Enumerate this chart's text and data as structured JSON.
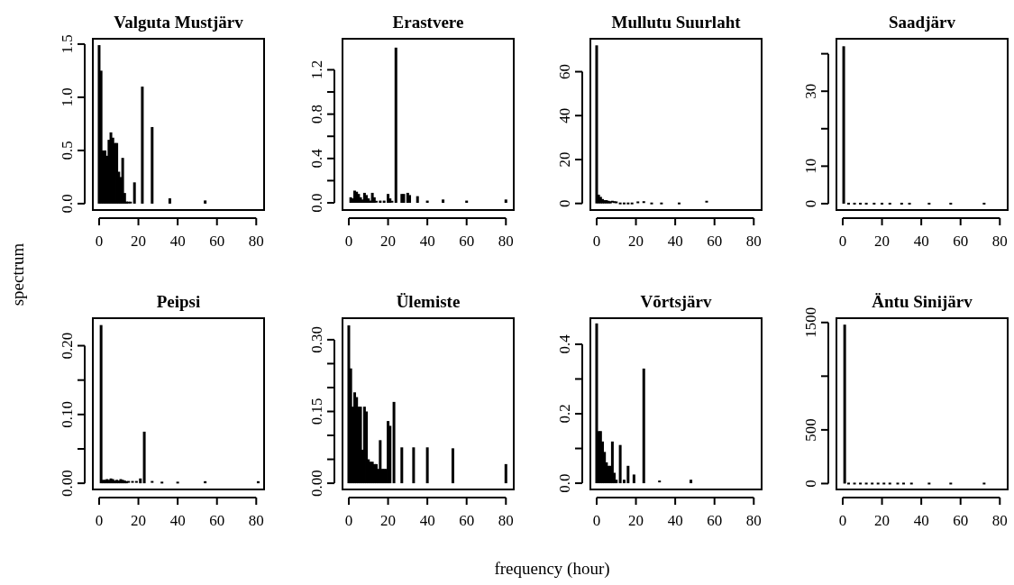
{
  "chart_data": [
    {
      "type": "bar",
      "title": "Valguta Mustjärv",
      "ylabel": "spectrum",
      "color": "#000000",
      "x": [
        0,
        1,
        2,
        3,
        4,
        5,
        6,
        7,
        8,
        9,
        10,
        11,
        12,
        13,
        14,
        15,
        16,
        18,
        22,
        27,
        36,
        54
      ],
      "values": [
        1.49,
        1.25,
        0.5,
        0.5,
        0.45,
        0.6,
        0.67,
        0.62,
        0.57,
        0.57,
        0.3,
        0.25,
        0.43,
        0.1,
        0.02,
        0.01,
        0.01,
        0.2,
        1.1,
        0.72,
        0.05,
        0.03
      ],
      "xlim": [
        -3.2,
        84
      ],
      "ylim": [
        -0.06,
        1.55
      ],
      "xticks": [
        0,
        20,
        40,
        60,
        80
      ],
      "yticks": [
        {
          "value": 0,
          "label": "0.0"
        },
        {
          "value": 0.5,
          "label": "0.5"
        },
        {
          "value": 1,
          "label": "1.0"
        },
        {
          "value": 1.5,
          "label": "1.5"
        }
      ]
    },
    {
      "type": "bar",
      "title": "Erastvere",
      "color": "#000000",
      "x": [
        1,
        2,
        3,
        4,
        5,
        6,
        7,
        8,
        9,
        10,
        11,
        12,
        13,
        14,
        16,
        18,
        20,
        21,
        22,
        24,
        27,
        28,
        30,
        31,
        35,
        40,
        48,
        60,
        80
      ],
      "values": [
        0.05,
        0.04,
        0.11,
        0.1,
        0.08,
        0.05,
        0.03,
        0.09,
        0.07,
        0.04,
        0.02,
        0.09,
        0.05,
        0.01,
        0.02,
        0.02,
        0.08,
        0.04,
        0.01,
        1.4,
        0.08,
        0.08,
        0.09,
        0.07,
        0.06,
        0.02,
        0.03,
        0.02,
        0.03
      ],
      "xlim": [
        -3.2,
        84
      ],
      "ylim": [
        -0.065,
        1.48
      ],
      "xticks": [
        0,
        20,
        40,
        60,
        80
      ],
      "yticks": [
        {
          "value": 0,
          "label": "0.0"
        },
        {
          "value": 0.2,
          "label": null
        },
        {
          "value": 0.4,
          "label": "0.4"
        },
        {
          "value": 0.6,
          "label": null
        },
        {
          "value": 0.8,
          "label": "0.8"
        },
        {
          "value": 1,
          "label": null
        },
        {
          "value": 1.2,
          "label": "1.2"
        }
      ]
    },
    {
      "type": "bar",
      "title": "Mullutu Suurlaht",
      "color": "#000000",
      "x": [
        0,
        1,
        2,
        3,
        4,
        5,
        6,
        7,
        8,
        9,
        10,
        12,
        14,
        16,
        18,
        21,
        24,
        28,
        33,
        42,
        56
      ],
      "values": [
        72,
        4,
        3,
        2,
        1.5,
        1.5,
        1.2,
        1,
        0.8,
        0.6,
        0.5,
        0,
        0,
        0,
        0,
        0.5,
        0.6,
        0,
        0,
        0,
        0.8
      ],
      "xlim": [
        -3.2,
        84
      ],
      "ylim": [
        -3,
        75
      ],
      "xticks": [
        0,
        20,
        40,
        60,
        80
      ],
      "yticks": [
        0,
        20,
        40,
        60
      ]
    },
    {
      "type": "bar",
      "title": "Saadjärv",
      "color": "#000000",
      "x": [
        0.5,
        3,
        6,
        9,
        12,
        16,
        20,
        24,
        30,
        34,
        44,
        55,
        72
      ],
      "values": [
        42,
        0,
        0,
        0,
        0,
        0,
        0,
        0,
        0,
        0,
        0,
        0,
        0
      ],
      "xlim": [
        -3.2,
        84
      ],
      "ylim": [
        -1.7,
        44
      ],
      "xticks": [
        0,
        20,
        40,
        60,
        80
      ],
      "yticks": [
        0,
        10,
        {
          "value": 20,
          "label": null
        },
        30,
        {
          "value": 40,
          "label": null
        }
      ]
    },
    {
      "type": "bar",
      "title": "Peipsi",
      "color": "#000000",
      "x": [
        1,
        2,
        3,
        4,
        5,
        6,
        7,
        8,
        9,
        10,
        11,
        12,
        13,
        14,
        15,
        17,
        19,
        21,
        23,
        27,
        32,
        40,
        54,
        81
      ],
      "values": [
        0.23,
        0.005,
        0.005,
        0.006,
        0.005,
        0.007,
        0.006,
        0.004,
        0.005,
        0.004,
        0.006,
        0.005,
        0.004,
        0.003,
        0.002,
        0.002,
        0.002,
        0.007,
        0.075,
        0.002,
        0.001,
        0.001,
        0.003,
        0.003
      ],
      "xlim": [
        -3.2,
        84
      ],
      "ylim": [
        -0.009,
        0.24
      ],
      "xticks": [
        0,
        20,
        40,
        60,
        80
      ],
      "yticks": [
        {
          "value": 0,
          "label": "0.00"
        },
        {
          "value": 0.05,
          "label": null
        },
        {
          "value": 0.1,
          "label": "0.10"
        },
        {
          "value": 0.15,
          "label": null
        },
        {
          "value": 0.2,
          "label": "0.20"
        }
      ]
    },
    {
      "type": "bar",
      "title": "Ülemiste",
      "xlabel": "frequency (hour)",
      "color": "#000000",
      "x": [
        0,
        1,
        2,
        3,
        4,
        5,
        6,
        7,
        8,
        9,
        10,
        11,
        12,
        13,
        14,
        15,
        16,
        17,
        18,
        19,
        20,
        21,
        23,
        27,
        33,
        40,
        53,
        80
      ],
      "values": [
        0.33,
        0.24,
        0.16,
        0.19,
        0.18,
        0.16,
        0.16,
        0.07,
        0.16,
        0.15,
        0.05,
        0.045,
        0.045,
        0.04,
        0.04,
        0.03,
        0.09,
        0.03,
        0.03,
        0.03,
        0.13,
        0.12,
        0.17,
        0.075,
        0.075,
        0.075,
        0.073,
        0.04
      ],
      "xlim": [
        -3.2,
        84
      ],
      "ylim": [
        -0.013,
        0.345
      ],
      "xticks": [
        0,
        20,
        40,
        60,
        80
      ],
      "yticks": [
        {
          "value": 0,
          "label": "0.00"
        },
        {
          "value": 0.05,
          "label": null
        },
        {
          "value": 0.1,
          "label": null
        },
        {
          "value": 0.15,
          "label": "0.15"
        },
        {
          "value": 0.2,
          "label": null
        },
        {
          "value": 0.25,
          "label": null
        },
        {
          "value": 0.3,
          "label": "0.30"
        }
      ]
    },
    {
      "type": "bar",
      "title": "Võrtsjärv",
      "color": "#000000",
      "x": [
        0,
        1,
        2,
        3,
        4,
        5,
        6,
        7,
        8,
        9,
        10,
        12,
        14,
        16,
        19,
        24,
        32,
        48
      ],
      "values": [
        0.46,
        0.15,
        0.15,
        0.12,
        0.09,
        0.06,
        0.05,
        0.05,
        0.12,
        0.03,
        0.01,
        0.11,
        0.01,
        0.05,
        0.025,
        0.33,
        0.005,
        0.01
      ],
      "xlim": [
        -3.2,
        84
      ],
      "ylim": [
        -0.018,
        0.475
      ],
      "xticks": [
        0,
        20,
        40,
        60,
        80
      ],
      "yticks": [
        {
          "value": 0,
          "label": "0.0"
        },
        {
          "value": 0.1,
          "label": null
        },
        {
          "value": 0.2,
          "label": "0.2"
        },
        {
          "value": 0.3,
          "label": null
        },
        {
          "value": 0.4,
          "label": "0.4"
        }
      ]
    },
    {
      "type": "bar",
      "title": "Äntu Sinijärv",
      "color": "#000000",
      "x": [
        1,
        3,
        6,
        9,
        12,
        15,
        18,
        21,
        24,
        28,
        31,
        35,
        44,
        55,
        72
      ],
      "values": [
        1480,
        0,
        0,
        0,
        0,
        0,
        0,
        0,
        0,
        0,
        0,
        0,
        0,
        0,
        0
      ],
      "xlim": [
        -3.2,
        84
      ],
      "ylim": [
        -55,
        1540
      ],
      "xticks": [
        0,
        20,
        40,
        60,
        80
      ],
      "yticks": [
        0,
        500,
        {
          "value": 1000,
          "label": null
        },
        1500
      ]
    }
  ]
}
